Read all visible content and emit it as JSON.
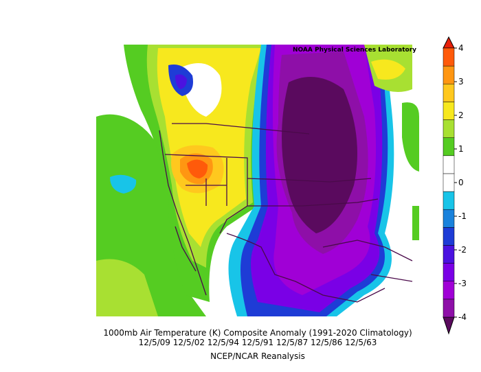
{
  "map": {
    "credit": "NOAA Physical Sciences Laboratory",
    "title": "1000mb Air Temperature (K) Composite Anomaly (1991-2020 Climatology)",
    "dates": "12/5/09 12/5/02 12/5/94 12/5/91 12/5/87 12/5/86 12/5/63",
    "source": "NCEP/NCAR Reanalysis"
  },
  "colorbar": {
    "ylim": [
      -4,
      4
    ],
    "ticks": [
      -4,
      -3,
      -2,
      -1,
      0,
      1,
      2,
      3,
      4
    ],
    "colors": [
      "#5a0a5e",
      "#8e0fa8",
      "#a000d6",
      "#7a00e6",
      "#4b12e0",
      "#1e3cd6",
      "#1a82dc",
      "#18c4e8",
      "#ffffff",
      "#ffffff",
      "#55cc22",
      "#a8e032",
      "#f7e81e",
      "#ffc81e",
      "#ff9612",
      "#ff5a0a",
      "#e8200a"
    ]
  }
}
